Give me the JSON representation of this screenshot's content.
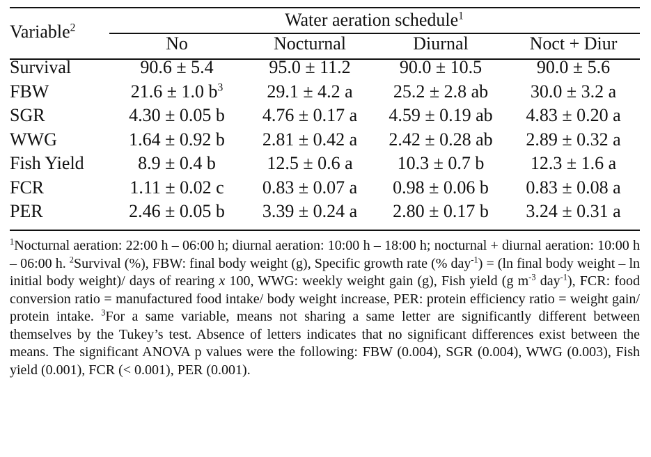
{
  "table": {
    "variable_header": "Variable",
    "variable_header_sup": "2",
    "group_header": "Water aeration schedule",
    "group_header_sup": "1",
    "columns": [
      "No",
      "Nocturnal",
      "Diurnal",
      "Noct + Diur"
    ],
    "rows": [
      {
        "label": "Survival",
        "cells": [
          "90.6 ± 5.4",
          "95.0 ± 11.2",
          "90.0 ± 10.5",
          "90.0 ± 5.6"
        ]
      },
      {
        "label": "FBW",
        "cells": [
          "21.6 ± 1.0 b",
          "29.1 ± 4.2 a",
          "25.2 ± 2.8 ab",
          "30.0 ± 3.2 a"
        ],
        "first_cell_sup": "3"
      },
      {
        "label": "SGR",
        "cells": [
          "4.30 ± 0.05 b",
          "4.76 ± 0.17 a",
          "4.59 ± 0.19 ab",
          "4.83 ± 0.20 a"
        ]
      },
      {
        "label": "WWG",
        "cells": [
          "1.64 ± 0.92 b",
          "2.81 ± 0.42 a",
          "2.42 ± 0.28 ab",
          "2.89 ± 0.32 a"
        ]
      },
      {
        "label": "Fish Yield",
        "cells": [
          "8.9 ± 0.4 b",
          "12.5 ± 0.6 a",
          "10.3 ± 0.7 b",
          "12.3 ± 1.6 a"
        ]
      },
      {
        "label": "FCR",
        "cells": [
          "1.11 ± 0.02 c",
          "0.83 ± 0.07 a",
          "0.98 ± 0.06 b",
          "0.83 ± 0.08 a"
        ]
      },
      {
        "label": "PER",
        "cells": [
          "2.46 ± 0.05 b",
          "3.39 ± 0.24 a",
          "2.80 ± 0.17 b",
          "3.24 ± 0.31 a"
        ]
      }
    ]
  },
  "footnote": {
    "n1_mark": "1",
    "n1_text": "Nocturnal aeration: 22:00 h – 06:00 h; diurnal aeration: 10:00 h – 18:00 h; nocturnal + diurnal aeration: 10:00 h – 06:00 h. ",
    "n2_mark": "2",
    "n2_text_a": "Survival (%), FBW: final body weight (g), Specific growth rate (% day",
    "n2_sup_a": "-1",
    "n2_text_b": ") = (ln final body weight – ln initial body weight)/ days of rearing ",
    "n2_italic_x": "x",
    "n2_text_c": " 100, WWG: weekly weight gain (g), Fish yield (g m",
    "n2_sup_b": "-3",
    "n2_text_d": " day",
    "n2_sup_c": "-1",
    "n2_text_e": "), FCR: food conversion ratio = manufactured food intake/ body weight increase, PER: protein efficiency ratio = weight gain/ protein intake. ",
    "n3_mark": "3",
    "n3_text": "For a same variable, means not sharing a same letter are significantly different between themselves by the Tukey’s test. Absence of letters indicates that no significant differences exist between the means. The significant ANOVA p values were the following: FBW (0.004), SGR (0.004), WWG (0.003), Fish yield (0.001), FCR (< 0.001), PER (0.001)."
  }
}
